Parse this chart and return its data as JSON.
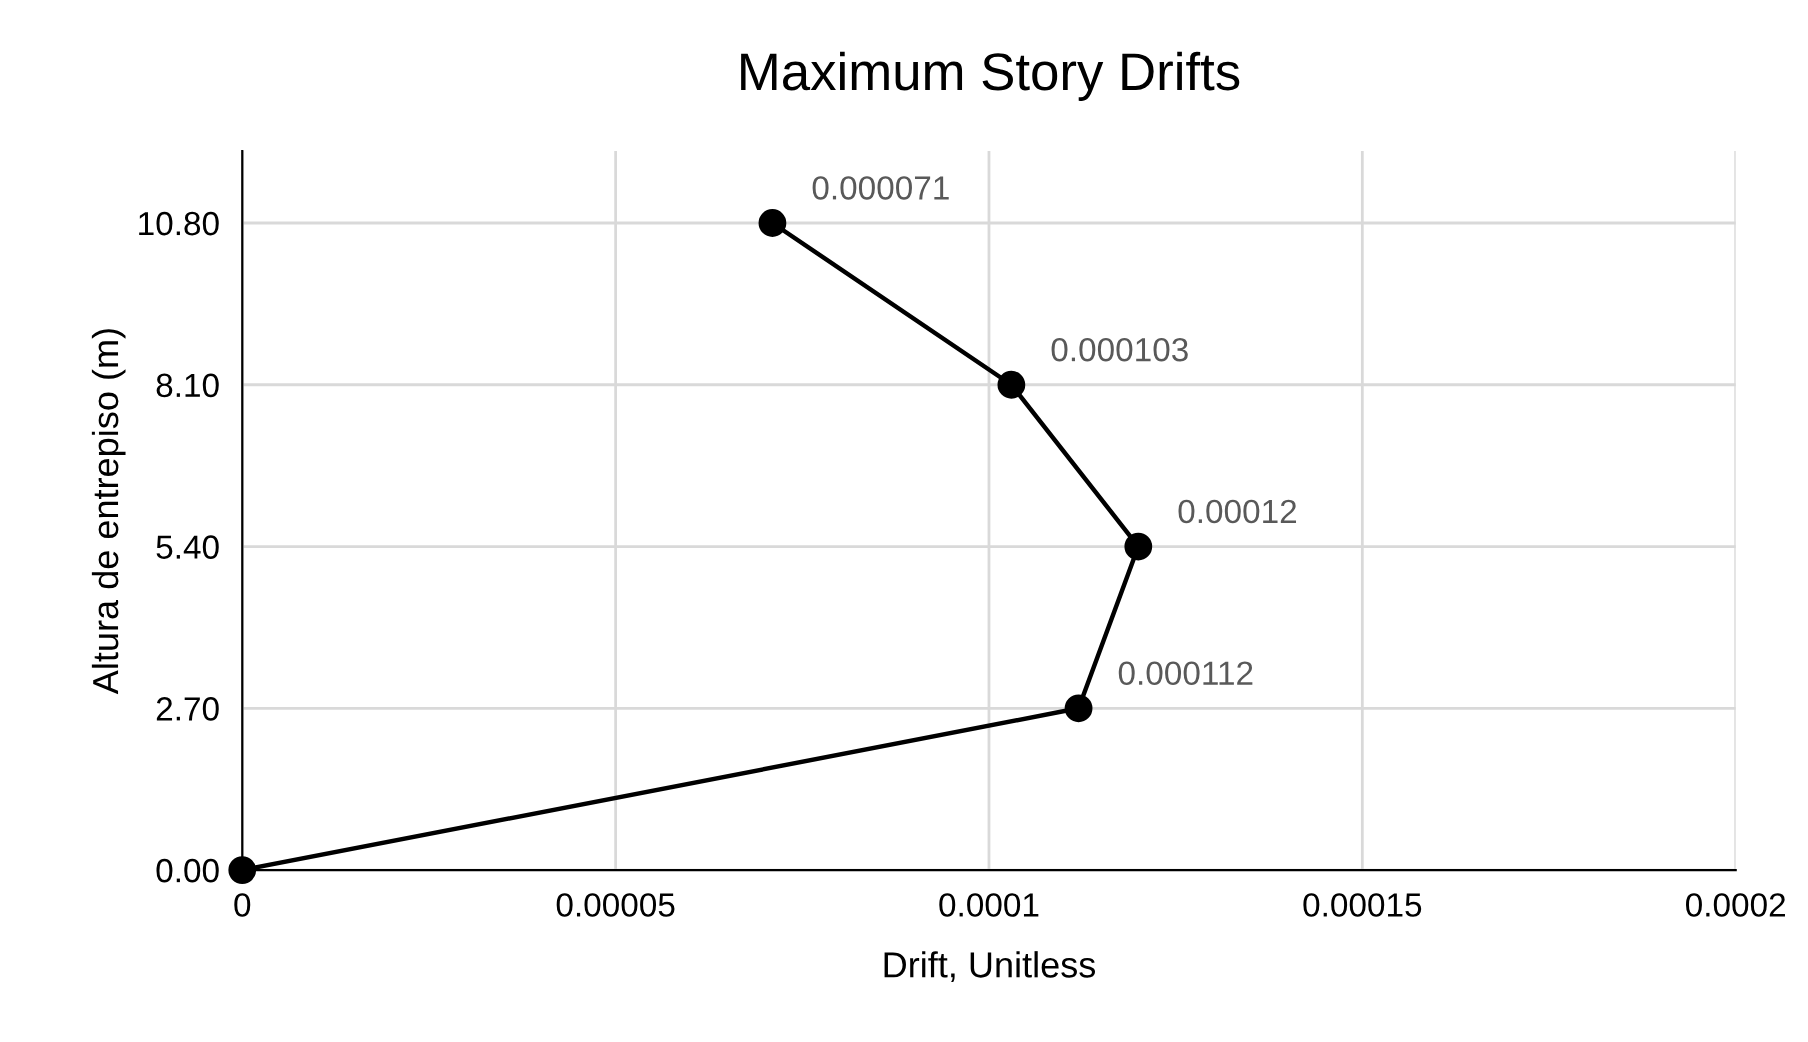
{
  "chart_data": {
    "type": "line",
    "title": "Maximum Story Drifts",
    "xlabel": "Drift, Unitless",
    "ylabel": "Altura de entrepiso (m)",
    "x": [
      0,
      0.000112,
      0.00012,
      0.000103,
      7.1e-05
    ],
    "series": [
      {
        "color": "#000000",
        "values": [
          0,
          2.7,
          5.4,
          8.1,
          10.8
        ]
      }
    ],
    "annotations": [
      {
        "text": "0.000112",
        "x": 0.000112,
        "y": 2.7
      },
      {
        "text": "0.00012",
        "x": 0.00012,
        "y": 5.4
      },
      {
        "text": "0.000103",
        "x": 0.000103,
        "y": 8.1
      },
      {
        "text": "0.000071",
        "x": 7.1e-05,
        "y": 10.8
      }
    ],
    "xlim": [
      0,
      0.0002
    ],
    "xticks": [
      {
        "value": 0,
        "label": "0"
      },
      {
        "value": 5e-05,
        "label": "0.00005"
      },
      {
        "value": 0.0001,
        "label": "0.0001"
      },
      {
        "value": 0.00015,
        "label": "0.00015"
      },
      {
        "value": 0.0002,
        "label": "0.0002"
      }
    ],
    "ylim": [
      0,
      12
    ],
    "yticks": [
      {
        "value": 0,
        "label": "0.00"
      },
      {
        "value": 2.7,
        "label": "2.70"
      },
      {
        "value": 5.4,
        "label": "5.40"
      },
      {
        "value": 8.1,
        "label": "8.10"
      },
      {
        "value": 10.8,
        "label": "10.80"
      }
    ],
    "grid": true,
    "marker": "circle",
    "line_style": "solid"
  }
}
